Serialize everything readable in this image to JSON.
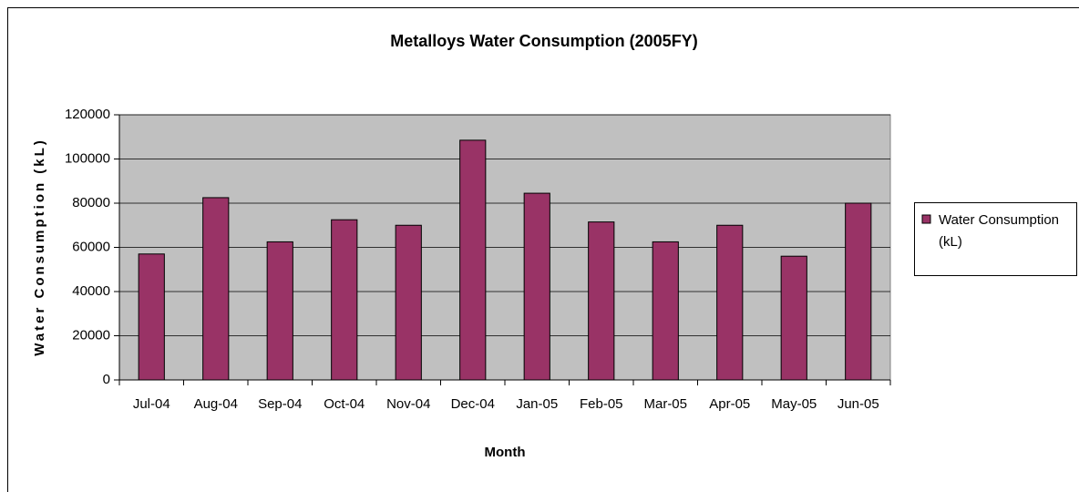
{
  "chart_data": {
    "type": "bar",
    "title": "Metalloys Water Consumption (2005FY)",
    "x_label": "Month",
    "y_label": "Water Consumption (kL)",
    "categories": [
      "Jul-04",
      "Aug-04",
      "Sep-04",
      "Oct-04",
      "Nov-04",
      "Dec-04",
      "Jan-05",
      "Feb-05",
      "Mar-05",
      "Apr-05",
      "May-05",
      "Jun-05"
    ],
    "series": [
      {
        "name": "Water Consumption (kL)",
        "color": "#993366",
        "values": [
          57000,
          82500,
          62500,
          72500,
          70000,
          108500,
          84500,
          71500,
          62500,
          70000,
          56000,
          80000
        ]
      }
    ],
    "ylim": [
      0,
      120000
    ],
    "yticks": [
      0,
      20000,
      40000,
      60000,
      80000,
      100000,
      120000
    ],
    "grid": true,
    "legend": "right"
  }
}
